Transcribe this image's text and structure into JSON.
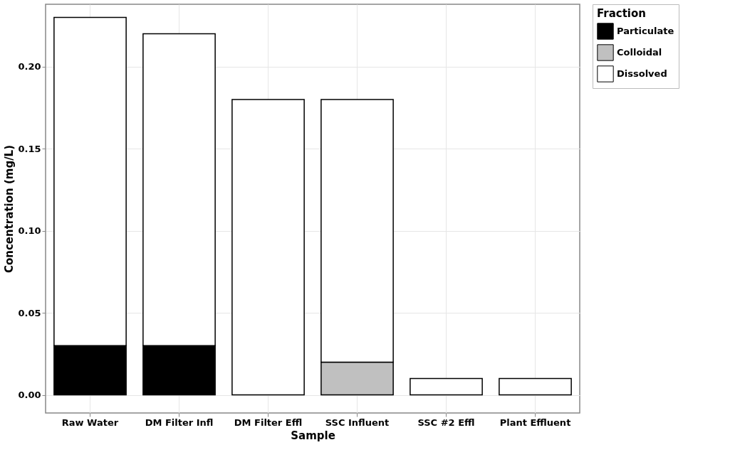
{
  "chart_data": {
    "type": "bar",
    "stacked": true,
    "xlabel": "Sample",
    "ylabel": "Concentration (mg/L)",
    "legend_title": "Fraction",
    "categories": [
      "Raw Water",
      "DM Filter Infl",
      "DM Filter Effl",
      "SSC Influent",
      "SSC #2 Effl",
      "Plant Effluent"
    ],
    "series": [
      {
        "name": "Particulate",
        "color": "#000000",
        "values": [
          0.03,
          0.03,
          null,
          null,
          null,
          null
        ]
      },
      {
        "name": "Colloidal",
        "color": "#c0c0c0",
        "values": [
          null,
          null,
          null,
          0.02,
          null,
          null
        ]
      },
      {
        "name": "Dissolved",
        "color": "#ffffff",
        "values": [
          0.2,
          0.19,
          0.18,
          0.16,
          0.01,
          0.01
        ]
      }
    ],
    "ylim": [
      -0.011,
      0.238
    ],
    "yticks": [
      {
        "value": 0,
        "label": "0.00"
      },
      {
        "value": 0.05,
        "label": "0.05"
      },
      {
        "value": 0.1,
        "label": "0.10"
      },
      {
        "value": 0.15,
        "label": "0.15"
      },
      {
        "value": 0.2,
        "label": "0.20"
      }
    ],
    "grid": true,
    "legend": "right"
  }
}
